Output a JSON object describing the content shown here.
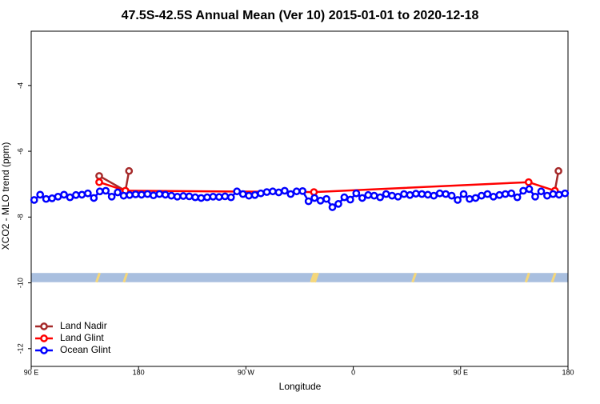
{
  "chart_data": {
    "type": "line",
    "title": "47.5S-42.5S Annual Mean (Ver 10)   2015-01-01 to 2020-12-18",
    "x_label": "Longitude",
    "y_label": "XCO2 - MLO trend (ppm)",
    "xlim": [
      90,
      540
    ],
    "ylim": [
      -12.54,
      -2.35
    ],
    "xticks": [
      {
        "value": 90,
        "label": "90 E"
      },
      {
        "value": 180,
        "label": "180"
      },
      {
        "value": 270,
        "label": "90 W"
      },
      {
        "value": 360,
        "label": "0"
      },
      {
        "value": 450,
        "label": "90 E"
      },
      {
        "value": 540,
        "label": "180"
      }
    ],
    "yticks": [
      -4,
      -6,
      -8,
      -10,
      -12
    ],
    "legend": "bottom-left",
    "series": [
      {
        "name": "Land Nadir",
        "color": "#a52a2a",
        "x": [
          147,
          169,
          172,
          507,
          529,
          532
        ],
        "values": [
          -6.75,
          -7.2,
          -6.6,
          null,
          -7.2,
          -6.6
        ]
      },
      {
        "name": "Land Glint",
        "color": "#ff0000",
        "x": [
          147,
          169,
          327,
          507,
          529
        ],
        "values": [
          -6.94,
          -7.2,
          -7.24,
          -6.94,
          -7.2
        ]
      },
      {
        "name": "Ocean Glint",
        "color": "#0000ff",
        "x": [
          92.5,
          97.5,
          102.5,
          107.5,
          112.5,
          117.5,
          122.5,
          127.5,
          132.5,
          137.5,
          142.5,
          147.5,
          152.5,
          157.5,
          162.5,
          167.5,
          172.5,
          177.5,
          182.5,
          187.5,
          192.5,
          197.5,
          202.5,
          207.5,
          212.5,
          217.5,
          222.5,
          227.5,
          232.5,
          237.5,
          242.5,
          247.5,
          252.5,
          257.5,
          262.5,
          267.5,
          272.5,
          277.5,
          282.5,
          287.5,
          292.5,
          297.5,
          302.5,
          307.5,
          312.5,
          317.5,
          322.5,
          327.5,
          332.5,
          337.5,
          342.5,
          347.5,
          352.5,
          357.5,
          362.5,
          367.5,
          372.5,
          377.5,
          382.5,
          387.5,
          392.5,
          397.5,
          402.5,
          407.5,
          412.5,
          417.5,
          422.5,
          427.5,
          432.5,
          437.5,
          442.5,
          447.5,
          452.5,
          457.5,
          462.5,
          467.5,
          472.5,
          477.5,
          482.5,
          487.5,
          492.5,
          497.5,
          502.5,
          507.5,
          512.5,
          517.5,
          522.5,
          527.5,
          532.5,
          537.5
        ],
        "values": [
          -7.48,
          -7.32,
          -7.45,
          -7.43,
          -7.38,
          -7.32,
          -7.4,
          -7.33,
          -7.32,
          -7.28,
          -7.42,
          -7.22,
          -7.2,
          -7.38,
          -7.25,
          -7.35,
          -7.33,
          -7.31,
          -7.32,
          -7.3,
          -7.34,
          -7.3,
          -7.32,
          -7.35,
          -7.38,
          -7.36,
          -7.37,
          -7.4,
          -7.42,
          -7.4,
          -7.38,
          -7.39,
          -7.37,
          -7.4,
          -7.22,
          -7.3,
          -7.35,
          -7.33,
          -7.28,
          -7.24,
          -7.22,
          -7.25,
          -7.2,
          -7.3,
          -7.22,
          -7.21,
          -7.52,
          -7.42,
          -7.5,
          -7.45,
          -7.7,
          -7.6,
          -7.4,
          -7.47,
          -7.28,
          -7.42,
          -7.33,
          -7.35,
          -7.4,
          -7.3,
          -7.35,
          -7.38,
          -7.3,
          -7.33,
          -7.29,
          -7.3,
          -7.32,
          -7.35,
          -7.28,
          -7.3,
          -7.35,
          -7.48,
          -7.3,
          -7.45,
          -7.42,
          -7.35,
          -7.3,
          -7.38,
          -7.33,
          -7.3,
          -7.28,
          -7.4,
          -7.2,
          -7.15,
          -7.38,
          -7.22,
          -7.35,
          -7.3,
          -7.32,
          -7.28
        ]
      }
    ],
    "coverage": {
      "color": "#a9bfdf",
      "land_color": "#f5d77b",
      "y": [
        -9.98,
        -9.7
      ],
      "land_x": [
        146,
        169,
        326,
        327.5,
        329,
        411,
        506,
        528
      ]
    }
  }
}
